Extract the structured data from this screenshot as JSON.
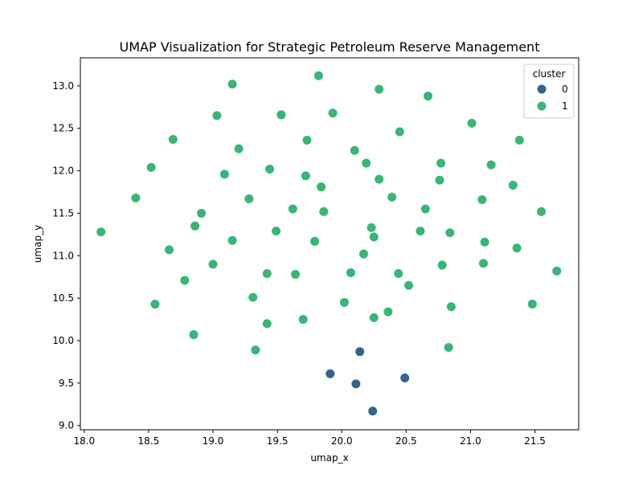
{
  "chart_data": {
    "type": "scatter",
    "title": "UMAP Visualization for Strategic Petroleum Reserve Management",
    "xlabel": "umap_x",
    "ylabel": "umap_y",
    "xlim": [
      17.97,
      21.84
    ],
    "ylim": [
      8.95,
      13.33
    ],
    "xticks": [
      "18.0",
      "18.5",
      "19.0",
      "19.5",
      "20.0",
      "20.5",
      "21.0",
      "21.5"
    ],
    "yticks": [
      "9.0",
      "9.5",
      "10.0",
      "10.5",
      "11.0",
      "11.5",
      "12.0",
      "12.5",
      "13.0"
    ],
    "grid": false,
    "legend": {
      "title": "cluster",
      "position": "top-right",
      "entries": [
        {
          "label": "0",
          "color": "#32648e"
        },
        {
          "label": "1",
          "color": "#36b677"
        }
      ]
    },
    "series": [
      {
        "name": "0",
        "color": "#32648e",
        "points": [
          [
            19.91,
            9.61
          ],
          [
            20.14,
            9.87
          ],
          [
            20.11,
            9.49
          ],
          [
            20.49,
            9.56
          ],
          [
            20.24,
            9.17
          ]
        ]
      },
      {
        "name": "1",
        "color": "#36b677",
        "points": [
          [
            18.13,
            11.28
          ],
          [
            18.4,
            11.68
          ],
          [
            18.52,
            12.04
          ],
          [
            18.55,
            10.43
          ],
          [
            18.66,
            11.07
          ],
          [
            18.69,
            12.37
          ],
          [
            18.78,
            10.71
          ],
          [
            18.85,
            10.07
          ],
          [
            18.86,
            11.35
          ],
          [
            18.91,
            11.5
          ],
          [
            19.0,
            10.9
          ],
          [
            19.03,
            12.65
          ],
          [
            19.09,
            11.96
          ],
          [
            19.15,
            13.02
          ],
          [
            19.15,
            11.18
          ],
          [
            19.2,
            12.26
          ],
          [
            19.28,
            11.67
          ],
          [
            19.31,
            10.51
          ],
          [
            19.33,
            9.89
          ],
          [
            19.42,
            10.79
          ],
          [
            19.42,
            10.2
          ],
          [
            19.44,
            12.02
          ],
          [
            19.49,
            11.29
          ],
          [
            19.53,
            12.66
          ],
          [
            19.62,
            11.55
          ],
          [
            19.64,
            10.78
          ],
          [
            19.7,
            10.25
          ],
          [
            19.72,
            11.94
          ],
          [
            19.73,
            12.36
          ],
          [
            19.79,
            11.17
          ],
          [
            19.82,
            13.12
          ],
          [
            19.84,
            11.81
          ],
          [
            19.86,
            11.52
          ],
          [
            19.93,
            12.68
          ],
          [
            20.02,
            10.45
          ],
          [
            20.07,
            10.8
          ],
          [
            20.1,
            12.24
          ],
          [
            20.17,
            11.02
          ],
          [
            20.19,
            12.09
          ],
          [
            20.23,
            11.33
          ],
          [
            20.25,
            11.22
          ],
          [
            20.25,
            10.27
          ],
          [
            20.29,
            11.9
          ],
          [
            20.29,
            12.96
          ],
          [
            20.36,
            10.34
          ],
          [
            20.39,
            11.69
          ],
          [
            20.44,
            10.79
          ],
          [
            20.45,
            12.46
          ],
          [
            20.52,
            10.65
          ],
          [
            20.61,
            11.29
          ],
          [
            20.65,
            11.55
          ],
          [
            20.67,
            12.88
          ],
          [
            20.76,
            11.89
          ],
          [
            20.77,
            12.09
          ],
          [
            20.78,
            10.89
          ],
          [
            20.83,
            9.92
          ],
          [
            20.84,
            11.27
          ],
          [
            20.85,
            10.4
          ],
          [
            21.01,
            12.56
          ],
          [
            21.09,
            11.66
          ],
          [
            21.1,
            10.91
          ],
          [
            21.11,
            11.16
          ],
          [
            21.16,
            12.07
          ],
          [
            21.33,
            11.83
          ],
          [
            21.36,
            11.09
          ],
          [
            21.38,
            12.36
          ],
          [
            21.48,
            10.43
          ],
          [
            21.55,
            11.52
          ],
          [
            21.67,
            10.82
          ]
        ]
      }
    ]
  }
}
